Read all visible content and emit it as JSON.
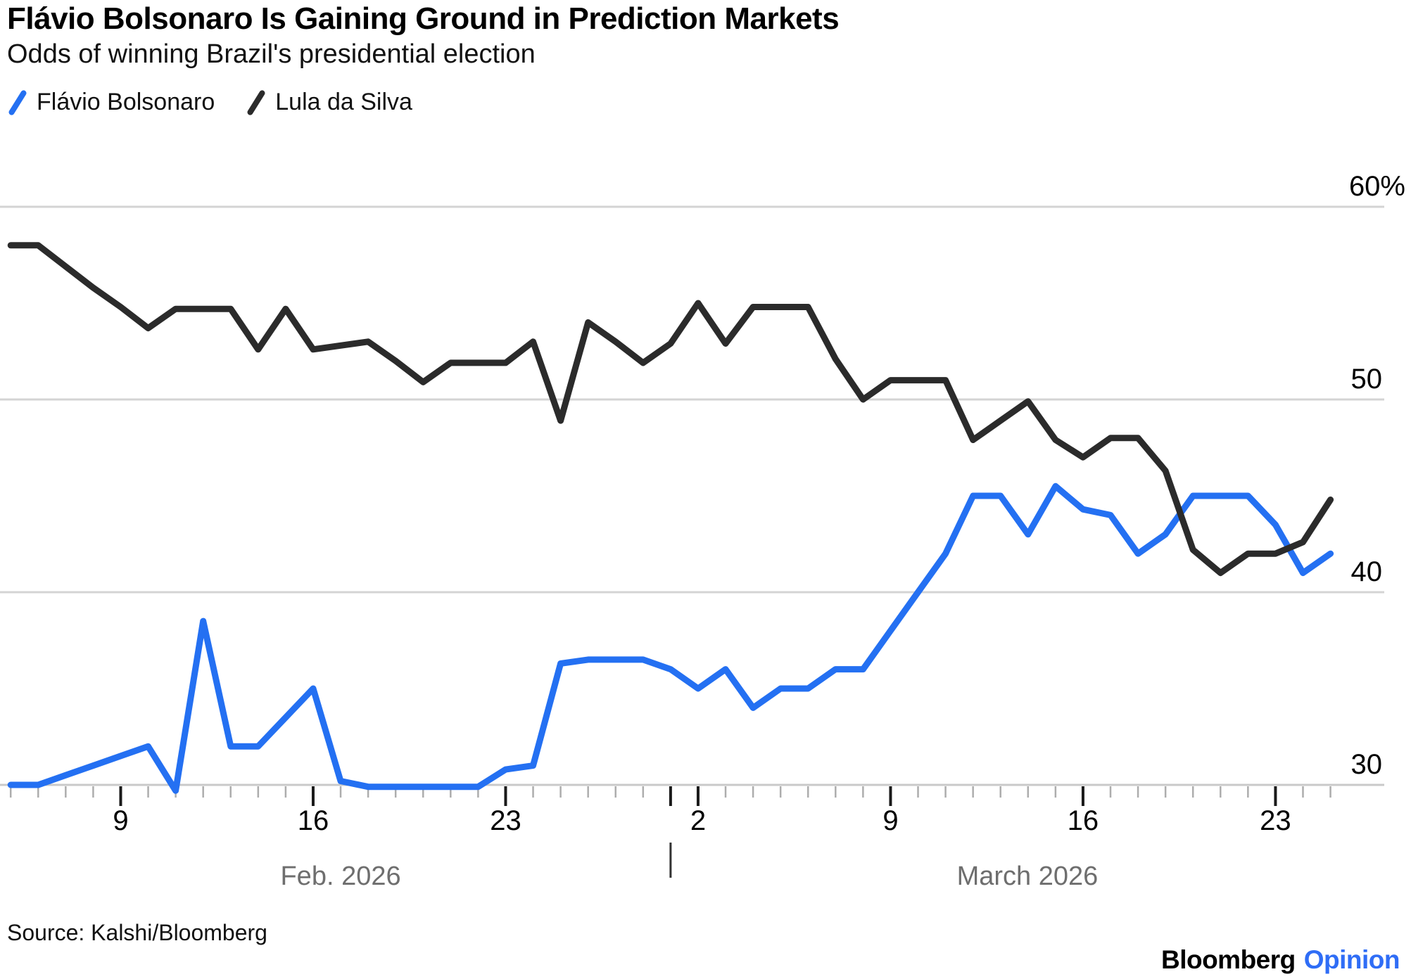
{
  "header": {
    "title": "Flávio Bolsonaro Is Gaining Ground in Prediction Markets",
    "subtitle": "Odds of winning Brazil's presidential election"
  },
  "legend": [
    {
      "label": "Flávio Bolsonaro",
      "color": "#2470f2"
    },
    {
      "label": "Lula da Silva",
      "color": "#2b2b2b"
    }
  ],
  "source": "Source: Kalshi/Bloomberg",
  "logo": {
    "brand": "Bloomberg",
    "sub": "Opinion",
    "sub_color": "#2f6df6"
  },
  "colors": {
    "background": "#ffffff",
    "grid": "#d4d4d4",
    "axis_line": "#c9c9c9",
    "minor_tick": "#adadad",
    "major_tick": "#1a1a1a",
    "day_label": "#000000",
    "month_label": "#6e6e6e",
    "y_label": "#000000"
  },
  "chart_data": {
    "type": "line",
    "title": "Flávio Bolsonaro Is Gaining Ground in Prediction Markets",
    "subtitle": "Odds of winning Brazil's presidential election",
    "unit": "%",
    "grid": true,
    "legend_position": "top-left",
    "ylim": [
      30,
      60
    ],
    "y_ticks": [
      {
        "value": 60,
        "label": "60%"
      },
      {
        "value": 50,
        "label": "50"
      },
      {
        "value": 40,
        "label": "40"
      },
      {
        "value": 30,
        "label": "30"
      }
    ],
    "x": [
      "Feb 5",
      "Feb 6",
      "Feb 7",
      "Feb 8",
      "Feb 9",
      "Feb 10",
      "Feb 11",
      "Feb 12",
      "Feb 13",
      "Feb 14",
      "Feb 15",
      "Feb 16",
      "Feb 17",
      "Feb 18",
      "Feb 19",
      "Feb 20",
      "Feb 21",
      "Feb 22",
      "Feb 23",
      "Feb 24",
      "Feb 25",
      "Feb 26",
      "Feb 27",
      "Feb 28",
      "Mar 1",
      "Mar 2",
      "Mar 3",
      "Mar 4",
      "Mar 5",
      "Mar 6",
      "Mar 7",
      "Mar 8",
      "Mar 9",
      "Mar 10",
      "Mar 11",
      "Mar 12",
      "Mar 13",
      "Mar 14",
      "Mar 15",
      "Mar 16",
      "Mar 17",
      "Mar 18",
      "Mar 19",
      "Mar 20",
      "Mar 21",
      "Mar 22",
      "Mar 23",
      "Mar 24",
      "Mar 25"
    ],
    "x_major_ticks": [
      {
        "index": 4,
        "label": "9"
      },
      {
        "index": 11,
        "label": "16"
      },
      {
        "index": 18,
        "label": "23"
      },
      {
        "index": 25,
        "label": "2"
      },
      {
        "index": 32,
        "label": "9"
      },
      {
        "index": 39,
        "label": "16"
      },
      {
        "index": 46,
        "label": "23"
      }
    ],
    "month_labels": [
      {
        "label": "Feb. 2026"
      },
      {
        "label": "March 2026"
      }
    ],
    "month_separator_index": 24,
    "series": [
      {
        "name": "Flávio Bolsonaro",
        "color": "#2470f2",
        "values": [
          30,
          30,
          30.5,
          31,
          31.5,
          32,
          29.7,
          38.5,
          32,
          32,
          33.5,
          35,
          30.2,
          29.9,
          29.9,
          29.9,
          29.9,
          29.9,
          30.8,
          31,
          36.3,
          36.5,
          36.5,
          36.5,
          36,
          35,
          36,
          34,
          35,
          35,
          36,
          36,
          38,
          40,
          42,
          45,
          45,
          43,
          45.5,
          44.3,
          44,
          42,
          43,
          45,
          45,
          45,
          43.5,
          41,
          42
        ]
      },
      {
        "name": "Lula da Silva",
        "color": "#2b2b2b",
        "values": [
          58,
          58,
          56.9,
          55.8,
          54.8,
          53.7,
          54.7,
          54.7,
          54.7,
          52.6,
          54.7,
          52.6,
          52.8,
          53,
          52,
          50.9,
          51.9,
          51.9,
          51.9,
          53,
          48.9,
          54,
          53,
          51.9,
          52.9,
          55,
          52.9,
          54.8,
          54.8,
          54.8,
          52.1,
          50,
          51,
          51,
          51,
          47.9,
          48.9,
          49.9,
          47.9,
          47,
          48,
          48,
          46.3,
          42.2,
          41,
          42,
          42,
          42.6,
          44.8
        ]
      }
    ]
  }
}
